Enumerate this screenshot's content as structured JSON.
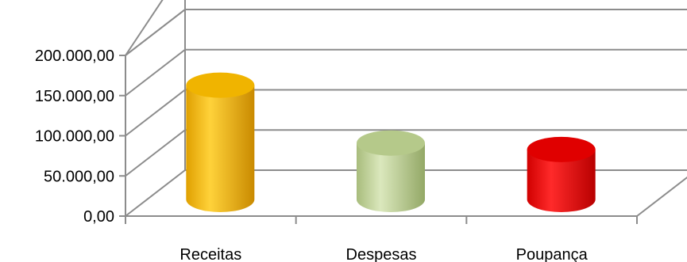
{
  "chart_data": {
    "type": "bar",
    "style": "3d-cylinder",
    "categories": [
      "Receitas",
      "Despesas",
      "Poupança"
    ],
    "values": [
      157000,
      85000,
      77000
    ],
    "colors": [
      "#f0b400",
      "#b5c98a",
      "#e00000"
    ],
    "yticks": [
      "0,00",
      "50.000,00",
      "100.000,00",
      "150.000,00",
      "200.000,00"
    ],
    "ytick_values": [
      0,
      50000,
      100000,
      150000,
      200000
    ],
    "ylim": [
      0,
      200000
    ],
    "grid": true,
    "title": "",
    "xlabel": "",
    "ylabel": ""
  }
}
